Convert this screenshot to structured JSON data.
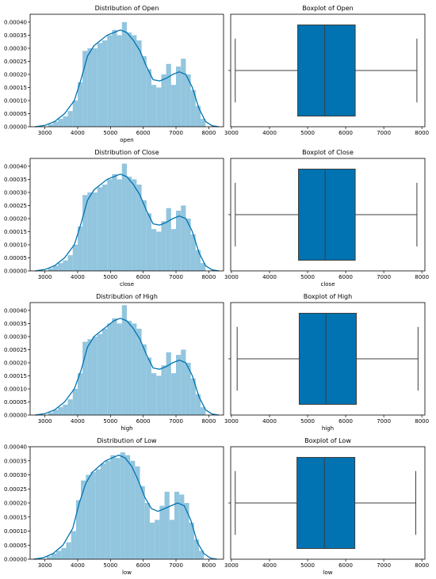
{
  "chart_data": [
    {
      "type": "histogram",
      "title": "Distribution of Open",
      "xlabel": "open",
      "ylabel": "",
      "xlim": [
        2550,
        8450
      ],
      "ylim": [
        0,
        0.00043
      ],
      "x_ticks": [
        3000,
        4000,
        5000,
        6000,
        7000,
        8000
      ],
      "y_ticks": [
        "0.00000",
        "0.00005",
        "0.00010",
        "0.00015",
        "0.00020",
        "0.00025",
        "0.00030",
        "0.00035",
        "0.00040"
      ],
      "bin_edges": [
        3100,
        3250,
        3400,
        3550,
        3700,
        3850,
        4000,
        4150,
        4300,
        4450,
        4600,
        4750,
        4900,
        5050,
        5200,
        5350,
        5500,
        5650,
        5800,
        5950,
        6100,
        6250,
        6400,
        6550,
        6700,
        6850,
        7000,
        7150,
        7300,
        7450,
        7600,
        7750,
        7900
      ],
      "values": [
        1e-05,
        2e-05,
        3e-05,
        4e-05,
        6e-05,
        0.0001,
        0.00017,
        0.00029,
        0.0003,
        0.0003,
        0.00032,
        0.00033,
        0.00035,
        0.00037,
        0.00035,
        0.0004,
        0.00036,
        0.00035,
        0.00033,
        0.00027,
        0.00022,
        0.00016,
        0.00015,
        0.0002,
        0.00024,
        0.00016,
        0.00023,
        0.00026,
        0.0002,
        0.00014,
        8e-05,
        3e-05
      ],
      "kde": {
        "x": [
          2700,
          3000,
          3300,
          3600,
          3900,
          4100,
          4300,
          4500,
          4700,
          4900,
          5100,
          5300,
          5500,
          5700,
          5900,
          6100,
          6300,
          6500,
          6700,
          6900,
          7100,
          7300,
          7500,
          7700,
          7900,
          8100,
          8300
        ],
        "y": [
          0.0,
          5e-06,
          2e-05,
          5e-05,
          0.0001,
          0.00018,
          0.00027,
          0.00031,
          0.00033,
          0.00035,
          0.00036,
          0.00037,
          0.00036,
          0.00033,
          0.00029,
          0.00023,
          0.00018,
          0.000175,
          0.000185,
          0.0002,
          0.00021,
          0.0002,
          0.00015,
          7e-05,
          2e-05,
          4e-06,
          0.0
        ]
      },
      "color": "#92c5de",
      "line_color": "#0173b2"
    },
    {
      "type": "boxplot",
      "title": "Boxplot of Open",
      "xlabel": "",
      "xlim": [
        2980,
        8080
      ],
      "x_ticks": [
        3000,
        4000,
        5000,
        6000,
        7000,
        8000
      ],
      "whisker_low": 3100,
      "q1": 4740,
      "median": 5450,
      "q3": 6250,
      "whisker_high": 7870,
      "color": "#0173b2"
    },
    {
      "type": "histogram",
      "title": "Distribution of Close",
      "xlabel": "close",
      "ylabel": "",
      "xlim": [
        2550,
        8450
      ],
      "ylim": [
        0,
        0.00043
      ],
      "x_ticks": [
        3000,
        4000,
        5000,
        6000,
        7000,
        8000
      ],
      "y_ticks": [
        "0.00000",
        "0.00005",
        "0.00010",
        "0.00015",
        "0.00020",
        "0.00025",
        "0.00030",
        "0.00035",
        "0.00040"
      ],
      "bin_edges": [
        3100,
        3250,
        3400,
        3550,
        3700,
        3850,
        4000,
        4150,
        4300,
        4450,
        4600,
        4750,
        4900,
        5050,
        5200,
        5350,
        5500,
        5650,
        5800,
        5950,
        6100,
        6250,
        6400,
        6550,
        6700,
        6850,
        7000,
        7150,
        7300,
        7450,
        7600,
        7750,
        7900
      ],
      "values": [
        1e-05,
        2e-05,
        3e-05,
        4e-05,
        6e-05,
        0.0001,
        0.00017,
        0.00029,
        0.0003,
        0.0003,
        0.00032,
        0.00033,
        0.00035,
        0.00037,
        0.00035,
        0.00041,
        0.00036,
        0.00035,
        0.00033,
        0.00027,
        0.00022,
        0.00016,
        0.00015,
        0.00019,
        0.00024,
        0.00016,
        0.00023,
        0.00025,
        0.0002,
        0.00014,
        8e-05,
        3e-05
      ],
      "kde": {
        "x": [
          2700,
          3000,
          3300,
          3600,
          3900,
          4100,
          4300,
          4500,
          4700,
          4900,
          5100,
          5300,
          5500,
          5700,
          5900,
          6100,
          6300,
          6500,
          6700,
          6900,
          7100,
          7300,
          7500,
          7700,
          7900,
          8100,
          8300
        ],
        "y": [
          0.0,
          5e-06,
          2e-05,
          5e-05,
          0.0001,
          0.00018,
          0.00027,
          0.00031,
          0.00033,
          0.00035,
          0.00036,
          0.00037,
          0.00036,
          0.00033,
          0.00029,
          0.00023,
          0.00018,
          0.000175,
          0.000185,
          0.0002,
          0.00021,
          0.0002,
          0.00015,
          7e-05,
          2e-05,
          4e-06,
          0.0
        ]
      },
      "color": "#92c5de",
      "line_color": "#0173b2"
    },
    {
      "type": "boxplot",
      "title": "Boxplot of Close",
      "xlabel": "close",
      "xlim": [
        2980,
        8080
      ],
      "x_ticks": [
        3000,
        4000,
        5000,
        6000,
        7000,
        8000
      ],
      "whisker_low": 3100,
      "q1": 4760,
      "median": 5460,
      "q3": 6250,
      "whisker_high": 7870,
      "color": "#0173b2"
    },
    {
      "type": "histogram",
      "title": "Distribution of High",
      "xlabel": "high",
      "ylabel": "",
      "xlim": [
        2550,
        8450
      ],
      "ylim": [
        0,
        0.00043
      ],
      "x_ticks": [
        3000,
        4000,
        5000,
        6000,
        7000,
        8000
      ],
      "y_ticks": [
        "0.00000",
        "0.00005",
        "0.00010",
        "0.00015",
        "0.00020",
        "0.00025",
        "0.00030",
        "0.00035",
        "0.00040"
      ],
      "bin_edges": [
        3100,
        3250,
        3400,
        3550,
        3700,
        3850,
        4000,
        4150,
        4300,
        4450,
        4600,
        4750,
        4900,
        5050,
        5200,
        5350,
        5500,
        5650,
        5800,
        5950,
        6100,
        6250,
        6400,
        6550,
        6700,
        6850,
        7000,
        7150,
        7300,
        7450,
        7600,
        7750,
        7900
      ],
      "values": [
        1e-05,
        2e-05,
        3e-05,
        4e-05,
        6e-05,
        0.0001,
        0.00016,
        0.00028,
        0.00029,
        0.0003,
        0.00031,
        0.00033,
        0.00035,
        0.00037,
        0.00035,
        0.00042,
        0.00036,
        0.00035,
        0.00033,
        0.00027,
        0.00022,
        0.00016,
        0.00015,
        0.00019,
        0.00024,
        0.00016,
        0.00023,
        0.00025,
        0.0002,
        0.00014,
        8e-05,
        3e-05
      ],
      "kde": {
        "x": [
          2700,
          3000,
          3300,
          3600,
          3900,
          4100,
          4300,
          4500,
          4700,
          4900,
          5100,
          5300,
          5500,
          5700,
          5900,
          6100,
          6300,
          6500,
          6700,
          6900,
          7100,
          7300,
          7500,
          7700,
          7900,
          8100,
          8300
        ],
        "y": [
          0.0,
          5e-06,
          2e-05,
          5e-05,
          0.0001,
          0.00017,
          0.00026,
          0.0003,
          0.00032,
          0.00034,
          0.00036,
          0.00037,
          0.00036,
          0.00033,
          0.00029,
          0.00023,
          0.00018,
          0.000175,
          0.000185,
          0.0002,
          0.00021,
          0.0002,
          0.00015,
          7e-05,
          2e-05,
          4e-06,
          0.0
        ]
      },
      "color": "#92c5de",
      "line_color": "#0173b2"
    },
    {
      "type": "boxplot",
      "title": "Boxplot of High",
      "xlabel": "high",
      "xlim": [
        2980,
        8080
      ],
      "x_ticks": [
        3000,
        4000,
        5000,
        6000,
        7000,
        8000
      ],
      "whisker_low": 3150,
      "q1": 4780,
      "median": 5480,
      "q3": 6280,
      "whisker_high": 7900,
      "color": "#0173b2"
    },
    {
      "type": "histogram",
      "title": "Distribution of Low",
      "xlabel": "low",
      "ylabel": "",
      "xlim": [
        2550,
        8450
      ],
      "ylim": [
        0,
        0.0004
      ],
      "x_ticks": [
        3000,
        4000,
        5000,
        6000,
        7000,
        8000
      ],
      "y_ticks": [
        "0.00000",
        "0.00005",
        "0.00010",
        "0.00015",
        "0.00020",
        "0.00025",
        "0.00030",
        "0.00035",
        "0.00040"
      ],
      "bin_edges": [
        3050,
        3200,
        3350,
        3500,
        3650,
        3800,
        3950,
        4100,
        4250,
        4400,
        4550,
        4700,
        4850,
        5000,
        5150,
        5300,
        5450,
        5600,
        5750,
        5900,
        6050,
        6200,
        6350,
        6500,
        6650,
        6800,
        6950,
        7100,
        7250,
        7400,
        7550,
        7700,
        7850
      ],
      "values": [
        1e-05,
        2e-05,
        3e-05,
        4e-05,
        6e-05,
        0.0001,
        0.00021,
        0.00028,
        0.0003,
        0.00031,
        0.00032,
        0.00034,
        0.00035,
        0.00037,
        0.00036,
        0.00038,
        0.00037,
        0.00035,
        0.00033,
        0.00026,
        0.0002,
        0.00013,
        0.00014,
        0.00019,
        0.00024,
        0.00014,
        0.00024,
        0.00023,
        0.0002,
        0.00013,
        7e-05,
        3e-05
      ],
      "kde": {
        "x": [
          2650,
          2950,
          3250,
          3550,
          3850,
          4050,
          4250,
          4450,
          4650,
          4850,
          5050,
          5250,
          5450,
          5650,
          5850,
          6050,
          6250,
          6450,
          6650,
          6850,
          7050,
          7250,
          7450,
          7650,
          7850,
          8050,
          8250
        ],
        "y": [
          0.0,
          5e-06,
          2e-05,
          5e-05,
          0.00011,
          0.0002,
          0.00027,
          0.00031,
          0.00033,
          0.00035,
          0.00036,
          0.00037,
          0.00036,
          0.00033,
          0.00028,
          0.00022,
          0.00018,
          0.00017,
          0.00018,
          0.00019,
          0.0002,
          0.00019,
          0.00014,
          6e-05,
          2e-05,
          4e-06,
          0.0
        ]
      },
      "color": "#92c5de",
      "line_color": "#0173b2"
    },
    {
      "type": "boxplot",
      "title": "Boxplot of Low",
      "xlabel": "low",
      "xlim": [
        2980,
        8080
      ],
      "x_ticks": [
        3000,
        4000,
        5000,
        6000,
        7000,
        8000
      ],
      "whisker_low": 3100,
      "q1": 4720,
      "median": 5440,
      "q3": 6240,
      "whisker_high": 7840,
      "color": "#0173b2"
    }
  ]
}
